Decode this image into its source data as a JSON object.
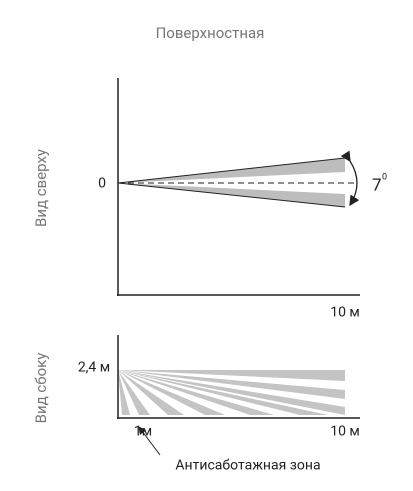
{
  "title": "Поверхностная",
  "top_view": {
    "label": "Вид сверху",
    "origin_label": "0",
    "angle_label": "7",
    "angle_unit": "0",
    "distance_label": "10 м"
  },
  "side_view": {
    "label": "Вид сбоку",
    "height_label": "2,4 м",
    "near_label": "1м",
    "far_label": "10 м",
    "annotation": "Антисаботажная зона"
  }
}
